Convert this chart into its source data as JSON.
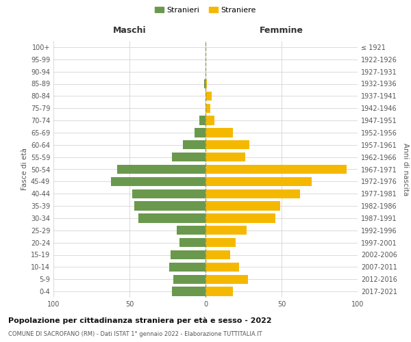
{
  "age_groups": [
    "100+",
    "95-99",
    "90-94",
    "85-89",
    "80-84",
    "75-79",
    "70-74",
    "65-69",
    "60-64",
    "55-59",
    "50-54",
    "45-49",
    "40-44",
    "35-39",
    "30-34",
    "25-29",
    "20-24",
    "15-19",
    "10-14",
    "5-9",
    "0-4"
  ],
  "birth_years": [
    "≤ 1921",
    "1922-1926",
    "1927-1931",
    "1932-1936",
    "1937-1941",
    "1942-1946",
    "1947-1951",
    "1952-1956",
    "1957-1961",
    "1962-1966",
    "1967-1971",
    "1972-1976",
    "1977-1981",
    "1982-1986",
    "1987-1991",
    "1992-1996",
    "1997-2001",
    "2002-2006",
    "2007-2011",
    "2012-2016",
    "2017-2021"
  ],
  "males": [
    0,
    0,
    0,
    1,
    0,
    0,
    4,
    7,
    15,
    22,
    58,
    62,
    48,
    47,
    44,
    19,
    17,
    23,
    24,
    21,
    22
  ],
  "females": [
    0,
    0,
    0,
    1,
    4,
    3,
    6,
    18,
    29,
    26,
    93,
    70,
    62,
    49,
    46,
    27,
    20,
    16,
    22,
    28,
    18
  ],
  "male_color": "#6a994e",
  "female_color": "#f5b800",
  "grid_color": "#cccccc",
  "background_color": "#ffffff",
  "title": "Popolazione per cittadinanza straniera per età e sesso - 2022",
  "subtitle": "COMUNE DI SACROFANO (RM) - Dati ISTAT 1° gennaio 2022 - Elaborazione TUTTITALIA.IT",
  "ylabel_left": "Fasce di età",
  "ylabel_right": "Anni di nascita",
  "xlabel_left": "Maschi",
  "xlabel_right": "Femmine",
  "legend_male": "Stranieri",
  "legend_female": "Straniere",
  "xlim": 100,
  "figsize": [
    6.0,
    5.0
  ],
  "dpi": 100
}
